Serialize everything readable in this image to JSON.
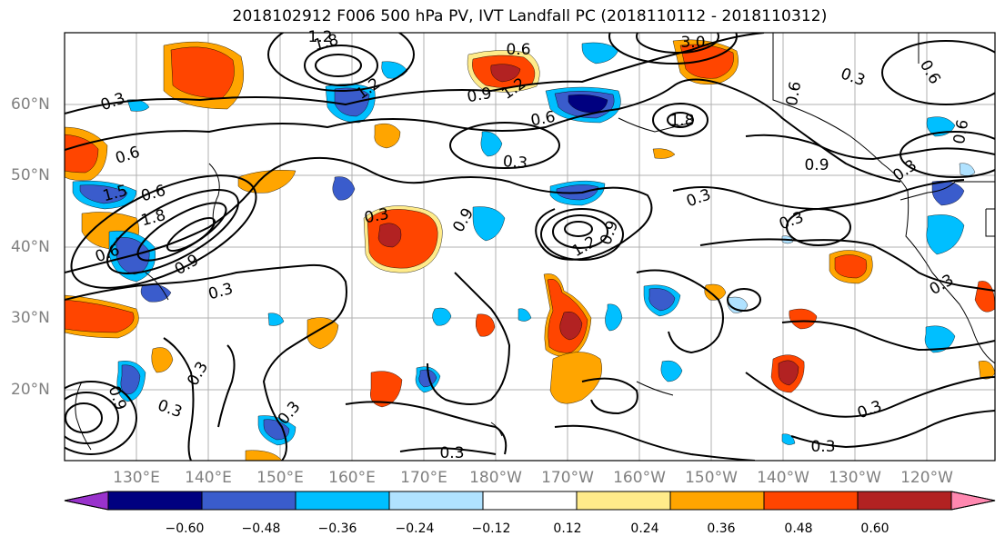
{
  "title": "2018102912 F006 500 hPa PV, IVT Landfall PC (2018110112 - 2018110312)",
  "latitude_labels": [
    "60°N",
    "50°N",
    "40°N",
    "30°N",
    "20°N"
  ],
  "longitude_labels": [
    "130°E",
    "140°E",
    "150°E",
    "160°E",
    "170°E",
    "180°W",
    "170°W",
    "160°W",
    "150°W",
    "140°W",
    "130°W",
    "120°W"
  ],
  "contour_labels": [
    "0.3",
    "0.6",
    "0.9",
    "1.2",
    "1.5",
    "1.8",
    "3.0"
  ],
  "colorbar": {
    "tick_labels": [
      "−0.60",
      "−0.48",
      "−0.36",
      "−0.24",
      "−0.12",
      "0.12",
      "0.24",
      "0.36",
      "0.48",
      "0.60"
    ],
    "colors": [
      "#9932cc",
      "#000080",
      "#3a5ccc",
      "#00bfff",
      "#b0e2ff",
      "#ffffff",
      "#ffeb8a",
      "#ffa500",
      "#ff4500",
      "#b22222",
      "#ff88b0"
    ]
  }
}
